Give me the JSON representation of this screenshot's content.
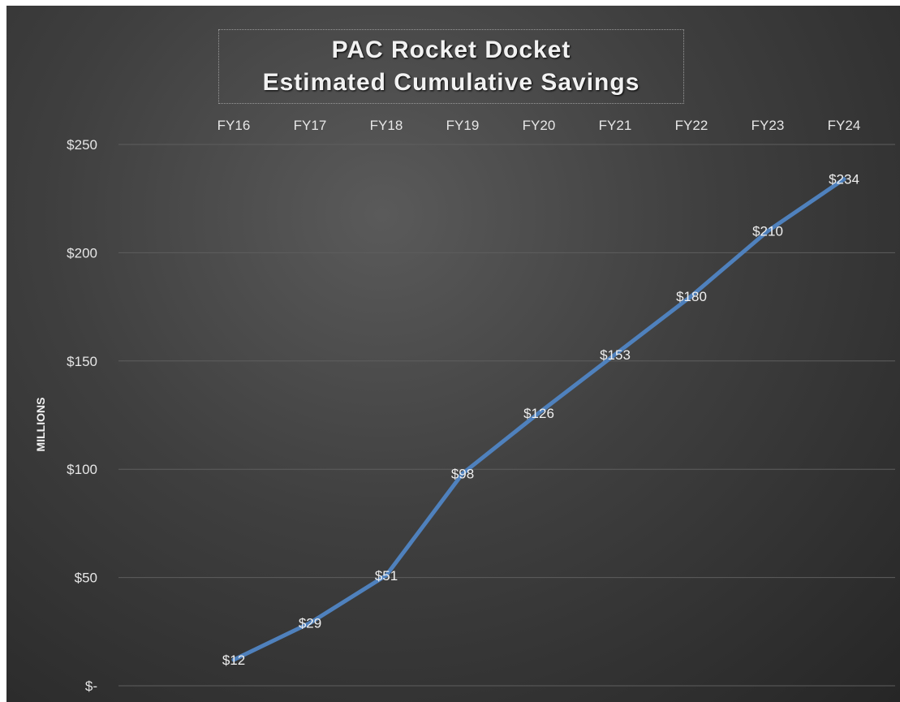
{
  "chart_data": {
    "type": "line",
    "title": [
      "PAC Rocket Docket",
      "Estimated Cumulative Savings"
    ],
    "ylabel": "MILLIONS",
    "xlabel": "",
    "categories": [
      "FY16",
      "FY17",
      "FY18",
      "FY19",
      "FY20",
      "FY21",
      "FY22",
      "FY23",
      "FY24"
    ],
    "series": [
      {
        "values": [
          12,
          29,
          51,
          98,
          126,
          153,
          180,
          210,
          234
        ],
        "labels": [
          "$12",
          "$29",
          "$51",
          "$98",
          "$126",
          "$153",
          "$180",
          "$210",
          "$234"
        ],
        "color": "#4f81bd"
      }
    ],
    "ylim": [
      0,
      250
    ],
    "yticks": [
      0,
      50,
      100,
      150,
      200,
      250
    ],
    "ytick_labels": [
      "$-",
      "$50",
      "$100",
      "$150",
      "$200",
      "$250"
    ],
    "x_axis_position": "top",
    "grid": true,
    "legend": "none"
  }
}
